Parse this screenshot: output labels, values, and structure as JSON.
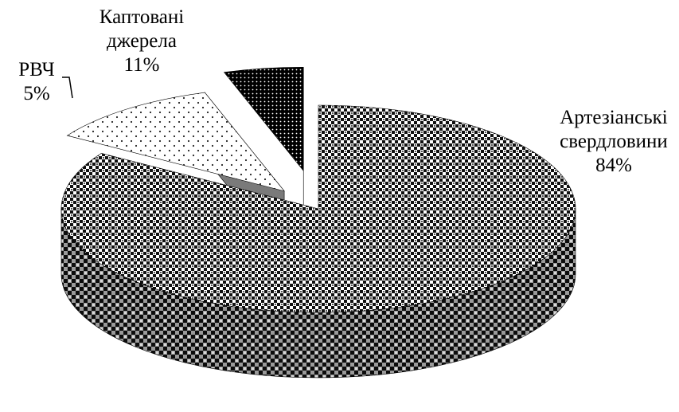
{
  "chart_data": {
    "type": "pie",
    "style": "3d-exploded",
    "legend": "none",
    "slices": [
      {
        "label_lines": [
          "Артезіанські",
          "свердловини"
        ],
        "value": 84,
        "value_label": "84%",
        "pattern": "checkered"
      },
      {
        "label_lines": [
          "Каптовані",
          "джерела"
        ],
        "value": 11,
        "value_label": "11%",
        "pattern": "sparse-dots"
      },
      {
        "label_lines": [
          "РВЧ"
        ],
        "value": 5,
        "value_label": "5%",
        "pattern": "dense-dots-dark"
      }
    ]
  }
}
